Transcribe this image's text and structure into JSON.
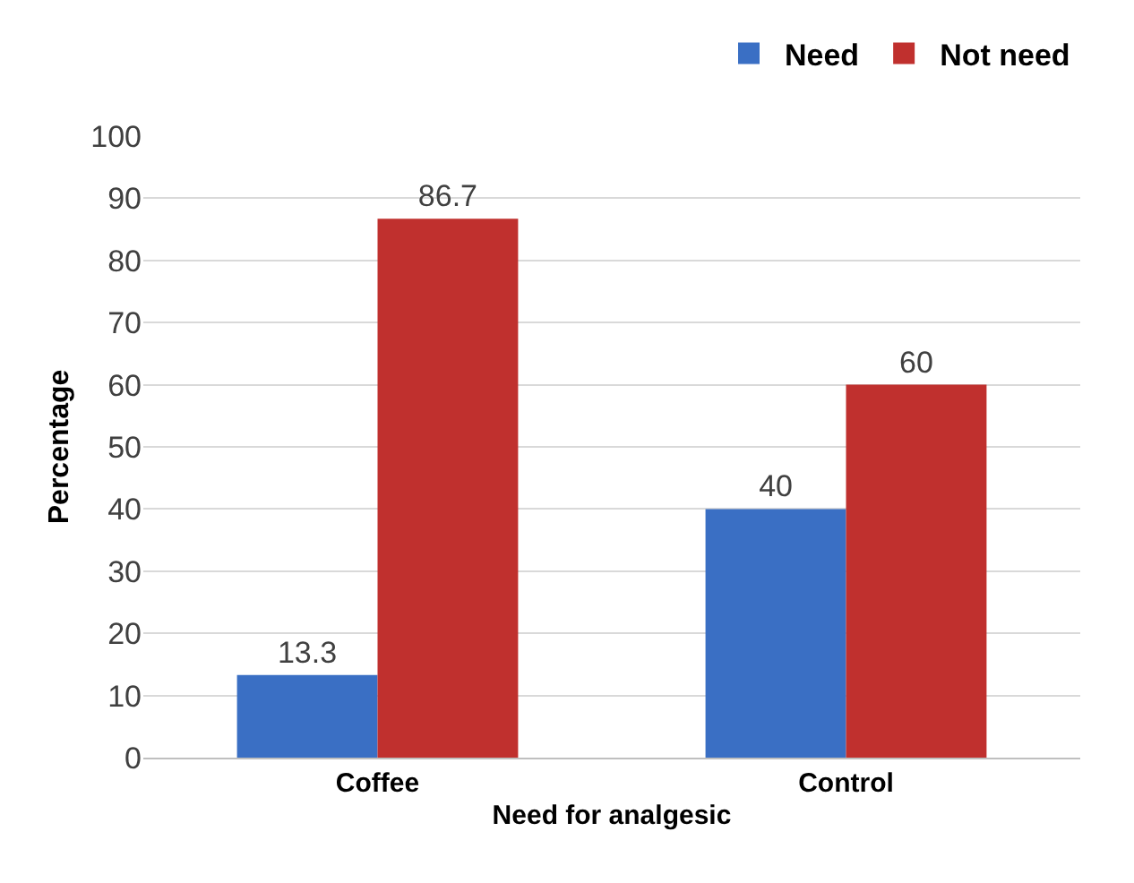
{
  "chart_data": {
    "type": "bar",
    "xlabel": "Need for analgesic",
    "ylabel": "Percentage",
    "categories": [
      "Coffee",
      "Control"
    ],
    "series": [
      {
        "name": "Need",
        "color": "#3a6fc4",
        "values": [
          13.3,
          40
        ]
      },
      {
        "name": "Not need",
        "color": "#c0302e",
        "values": [
          86.7,
          60
        ]
      }
    ],
    "ylim": [
      0,
      100
    ],
    "yticks": [
      0,
      10,
      20,
      30,
      40,
      50,
      60,
      70,
      80,
      90,
      100
    ],
    "grid": "y",
    "legend": "top right",
    "data_labels": true
  }
}
